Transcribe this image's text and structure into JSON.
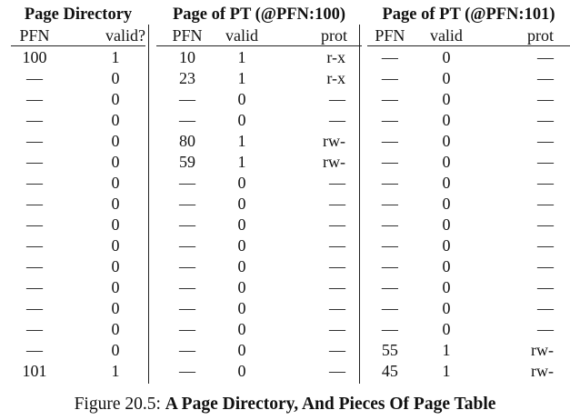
{
  "page_directory": {
    "title": "Page Directory",
    "columns": [
      "PFN",
      "valid?"
    ],
    "rows": [
      [
        "100",
        "1"
      ],
      [
        "—",
        "0"
      ],
      [
        "—",
        "0"
      ],
      [
        "—",
        "0"
      ],
      [
        "—",
        "0"
      ],
      [
        "—",
        "0"
      ],
      [
        "—",
        "0"
      ],
      [
        "—",
        "0"
      ],
      [
        "—",
        "0"
      ],
      [
        "—",
        "0"
      ],
      [
        "—",
        "0"
      ],
      [
        "—",
        "0"
      ],
      [
        "—",
        "0"
      ],
      [
        "—",
        "0"
      ],
      [
        "—",
        "0"
      ],
      [
        "101",
        "1"
      ]
    ]
  },
  "page_table_100": {
    "title": "Page of PT (@PFN:100)",
    "columns": [
      "PFN",
      "valid",
      "prot"
    ],
    "rows": [
      [
        "10",
        "1",
        "r-x"
      ],
      [
        "23",
        "1",
        "r-x"
      ],
      [
        "—",
        "0",
        "—"
      ],
      [
        "—",
        "0",
        "—"
      ],
      [
        "80",
        "1",
        "rw-"
      ],
      [
        "59",
        "1",
        "rw-"
      ],
      [
        "—",
        "0",
        "—"
      ],
      [
        "—",
        "0",
        "—"
      ],
      [
        "—",
        "0",
        "—"
      ],
      [
        "—",
        "0",
        "—"
      ],
      [
        "—",
        "0",
        "—"
      ],
      [
        "—",
        "0",
        "—"
      ],
      [
        "—",
        "0",
        "—"
      ],
      [
        "—",
        "0",
        "—"
      ],
      [
        "—",
        "0",
        "—"
      ],
      [
        "—",
        "0",
        "—"
      ]
    ]
  },
  "page_table_101": {
    "title": "Page of PT (@PFN:101)",
    "columns": [
      "PFN",
      "valid",
      "prot"
    ],
    "rows": [
      [
        "—",
        "0",
        "—"
      ],
      [
        "—",
        "0",
        "—"
      ],
      [
        "—",
        "0",
        "—"
      ],
      [
        "—",
        "0",
        "—"
      ],
      [
        "—",
        "0",
        "—"
      ],
      [
        "—",
        "0",
        "—"
      ],
      [
        "—",
        "0",
        "—"
      ],
      [
        "—",
        "0",
        "—"
      ],
      [
        "—",
        "0",
        "—"
      ],
      [
        "—",
        "0",
        "—"
      ],
      [
        "—",
        "0",
        "—"
      ],
      [
        "—",
        "0",
        "—"
      ],
      [
        "—",
        "0",
        "—"
      ],
      [
        "—",
        "0",
        "—"
      ],
      [
        "55",
        "1",
        "rw-"
      ],
      [
        "45",
        "1",
        "rw-"
      ]
    ]
  },
  "caption": {
    "label": "Figure 20.5:",
    "title": "A Page Directory, And Pieces Of Page Table"
  }
}
